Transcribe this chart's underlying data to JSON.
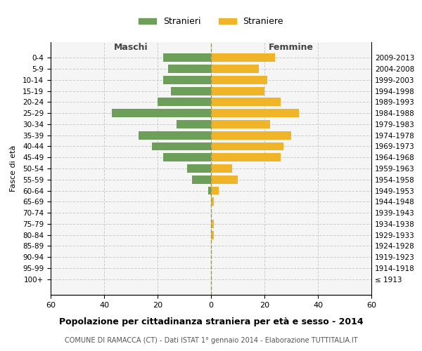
{
  "age_groups": [
    "100+",
    "95-99",
    "90-94",
    "85-89",
    "80-84",
    "75-79",
    "70-74",
    "65-69",
    "60-64",
    "55-59",
    "50-54",
    "45-49",
    "40-44",
    "35-39",
    "30-34",
    "25-29",
    "20-24",
    "15-19",
    "10-14",
    "5-9",
    "0-4"
  ],
  "birth_years": [
    "≤ 1913",
    "1914-1918",
    "1919-1923",
    "1924-1928",
    "1929-1933",
    "1934-1938",
    "1939-1943",
    "1944-1948",
    "1949-1953",
    "1954-1958",
    "1959-1963",
    "1964-1968",
    "1969-1973",
    "1974-1978",
    "1979-1983",
    "1984-1988",
    "1989-1993",
    "1994-1998",
    "1999-2003",
    "2004-2008",
    "2009-2013"
  ],
  "maschi": [
    0,
    0,
    0,
    0,
    0,
    0,
    0,
    0,
    1,
    7,
    9,
    18,
    22,
    27,
    13,
    37,
    20,
    15,
    18,
    16,
    18
  ],
  "femmine": [
    0,
    0,
    0,
    0,
    1,
    1,
    0,
    1,
    3,
    10,
    8,
    26,
    27,
    30,
    22,
    33,
    26,
    20,
    21,
    18,
    24
  ],
  "color_maschi": "#6d9e5a",
  "color_femmine": "#f0b429",
  "bg_color": "#f5f5f5",
  "grid_color": "#cccccc",
  "title": "Popolazione per cittadinanza straniera per età e sesso - 2014",
  "subtitle": "COMUNE DI RAMACCA (CT) - Dati ISTAT 1° gennaio 2014 - Elaborazione TUTTITALIA.IT",
  "xlabel_maschi": "Maschi",
  "xlabel_femmine": "Femmine",
  "ylabel": "Fasce di età",
  "legend_maschi": "Stranieri",
  "legend_femmine": "Straniere",
  "xlim": 60,
  "xticks": [
    -60,
    -40,
    -20,
    0,
    20,
    40,
    60
  ],
  "xtick_labels": [
    "60",
    "40",
    "20",
    "0",
    "20",
    "40",
    "60"
  ]
}
